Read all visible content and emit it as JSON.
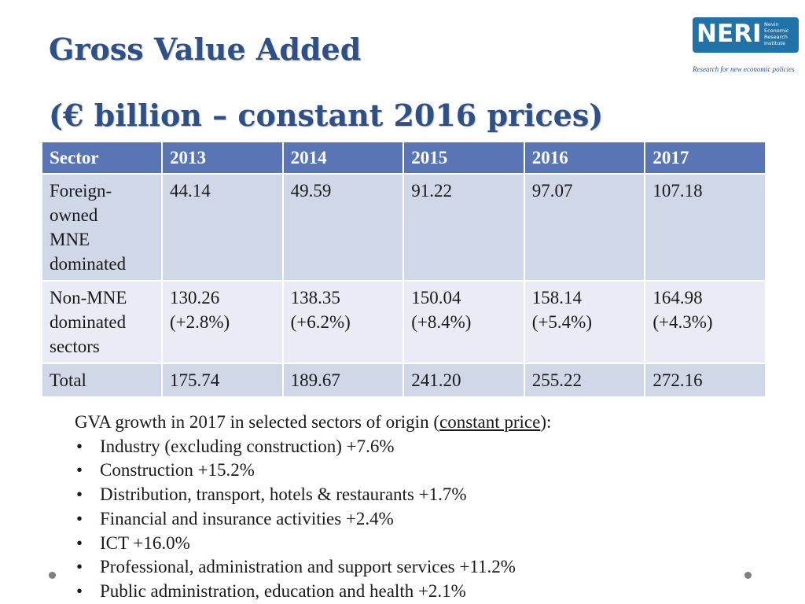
{
  "title": {
    "line1": "Gross Value Added",
    "line2": "(€ billion – constant 2016 prices)"
  },
  "logo": {
    "letters": "NERI",
    "sub": [
      "Nevin",
      "Economic",
      "Research",
      "Institute"
    ],
    "tagline": "Research for new economic policies"
  },
  "table": {
    "headers": [
      "Sector",
      "2013",
      "2014",
      "2015",
      "2016",
      "2017"
    ],
    "rows": [
      {
        "sector_lines": [
          "Foreign-",
          "owned",
          "MNE",
          "dominated"
        ],
        "cells": [
          [
            "44.14"
          ],
          [
            "49.59"
          ],
          [
            "91.22"
          ],
          [
            "97.07"
          ],
          [
            "107.18"
          ]
        ]
      },
      {
        "sector_lines": [
          "Non-MNE",
          "dominated",
          "sectors"
        ],
        "cells": [
          [
            "130.26",
            "(+2.8%)"
          ],
          [
            "138.35",
            "(+6.2%)"
          ],
          [
            "150.04",
            "(+8.4%)"
          ],
          [
            "158.14",
            "(+5.4%)"
          ],
          [
            "164.98",
            "(+4.3%)"
          ]
        ]
      },
      {
        "sector_lines": [
          "Total"
        ],
        "cells": [
          [
            "175.74"
          ],
          [
            "189.67"
          ],
          [
            "241.20"
          ],
          [
            "255.22"
          ],
          [
            "272.16"
          ]
        ]
      }
    ]
  },
  "notes": {
    "intro_before": "GVA growth in 2017 in selected sectors of origin (",
    "intro_link": "constant price",
    "intro_after": "):",
    "bullet_glyph": "•",
    "items": [
      "Industry (excluding construction) +7.6%",
      "Construction +15.2%",
      "Distribution, transport, hotels & restaurants +1.7%",
      "Financial and insurance activities +2.4%",
      "ICT +16.0%",
      "Professional, administration and support services +11.2%",
      "Public administration, education and health +2.1%"
    ]
  },
  "colors": {
    "title": "#2d5186",
    "header_bg": "#5975b5",
    "row_dark": "#d0d7e7",
    "row_light": "#e9ecf4",
    "logo_bg": "#1f73a8"
  }
}
